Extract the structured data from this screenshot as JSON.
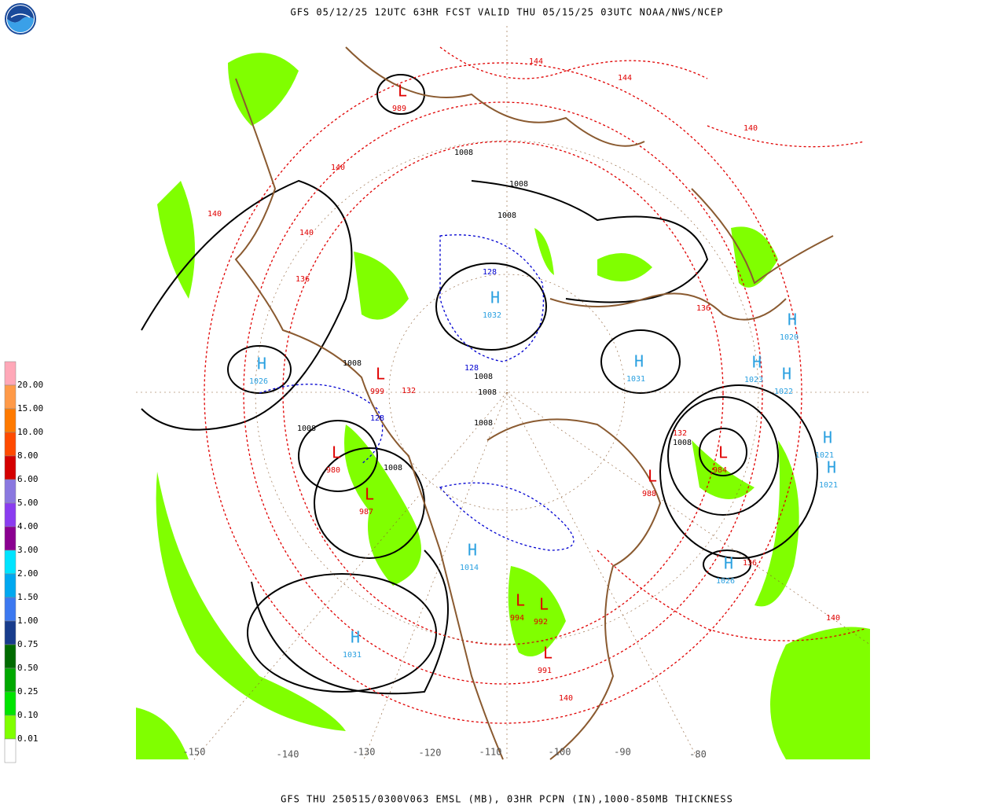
{
  "header": {
    "title": "GFS 05/12/25 12UTC 63HR FCST VALID THU 05/15/25 03UTC NOAA/NWS/NCEP"
  },
  "footer": {
    "text": "GFS THU 250515/0300V063 EMSL (MB), 03HR PCPN (IN),1000-850MB THICKNESS"
  },
  "legend": {
    "labels": [
      "20.00",
      "15.00",
      "10.00",
      "8.00",
      "6.00",
      "5.00",
      "4.00",
      "3.00",
      "2.00",
      "1.50",
      "1.00",
      "0.75",
      "0.50",
      "0.25",
      "0.10",
      "0.01"
    ],
    "colors": [
      "#ffa8b8",
      "#ff9a48",
      "#ff7a00",
      "#ff4a00",
      "#d40000",
      "#8a78e0",
      "#8a3cf0",
      "#8a0090",
      "#00e4ff",
      "#00a8f0",
      "#3c78f0",
      "#183c8c",
      "#006a00",
      "#00a800",
      "#00e400",
      "#80ff00",
      "#ffffff"
    ]
  },
  "longitudes": [
    "-150",
    "-140",
    "-130",
    "-120",
    "-110",
    "-100",
    "-90",
    "-80"
  ],
  "centers": [
    {
      "letter": "H",
      "value": "1026"
    },
    {
      "letter": "L",
      "value": "980"
    },
    {
      "letter": "L",
      "value": "987"
    },
    {
      "letter": "H",
      "value": "1031"
    },
    {
      "letter": "H",
      "value": "1020"
    },
    {
      "letter": "H",
      "value": "1023"
    },
    {
      "letter": "H",
      "value": "1022"
    },
    {
      "letter": "H",
      "value": "1031"
    },
    {
      "letter": "L",
      "value": "984"
    },
    {
      "letter": "H",
      "value": "1021"
    },
    {
      "letter": "H",
      "value": "1021"
    },
    {
      "letter": "H",
      "value": "1026"
    },
    {
      "letter": "L",
      "value": "989"
    },
    {
      "letter": "L",
      "value": "999"
    },
    {
      "letter": "L",
      "value": "988"
    },
    {
      "letter": "L",
      "value": "994"
    },
    {
      "letter": "L",
      "value": "992"
    },
    {
      "letter": "L",
      "value": "991"
    },
    {
      "letter": "H",
      "value": "1014"
    },
    {
      "letter": "H",
      "value": "1032"
    }
  ],
  "contour_labels": [
    "1008",
    "1008",
    "1008",
    "1008",
    "1008",
    "1008",
    "1008",
    "1008",
    "1008",
    "1008",
    "140",
    "140",
    "140",
    "140",
    "144",
    "144",
    "136",
    "136",
    "132",
    "132",
    "128",
    "128",
    "128",
    "140",
    "140",
    "136"
  ]
}
